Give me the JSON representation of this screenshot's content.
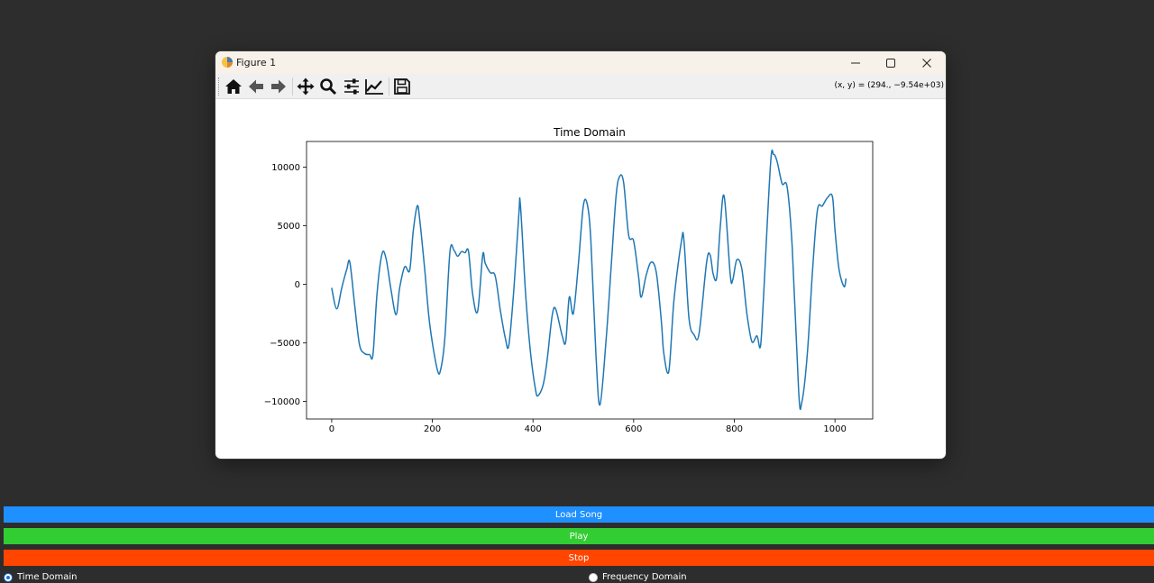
{
  "window": {
    "title": "Figure 1",
    "controls": [
      "minimize",
      "maximize",
      "close"
    ]
  },
  "toolbar": {
    "buttons": [
      {
        "name": "home-icon",
        "label": "Home"
      },
      {
        "name": "back-icon",
        "label": "Back"
      },
      {
        "name": "forward-icon",
        "label": "Forward"
      },
      {
        "name": "pan-icon",
        "label": "Pan"
      },
      {
        "name": "zoom-icon",
        "label": "Zoom"
      },
      {
        "name": "subplots-icon",
        "label": "Configure subplots"
      },
      {
        "name": "edit-axis-icon",
        "label": "Edit axis"
      },
      {
        "name": "save-icon",
        "label": "Save"
      }
    ],
    "coords": "(x, y) = (294., −9.54e+03)"
  },
  "chart_data": {
    "type": "line",
    "title": "Time Domain",
    "xlabel": "",
    "ylabel": "",
    "xlim": [
      -50,
      1075
    ],
    "ylim": [
      -11500,
      12200
    ],
    "xticks": [
      0,
      200,
      400,
      600,
      800,
      1000
    ],
    "yticks": [
      -10000,
      -5000,
      0,
      5000,
      10000
    ],
    "xtick_labels": [
      "0",
      "200",
      "400",
      "600",
      "800",
      "1000"
    ],
    "ytick_labels": [
      "−10000",
      "−5000",
      "0",
      "5000",
      "10000"
    ],
    "grid": false,
    "color": "#1f77b4",
    "series": [
      {
        "x": [
          0,
          10,
          20,
          30,
          36,
          45,
          55,
          65,
          75,
          82,
          90,
          100,
          108,
          118,
          128,
          135,
          145,
          155,
          162,
          170,
          175,
          185,
          195,
          210,
          217,
          225,
          235,
          243,
          250,
          258,
          265,
          272,
          280,
          290,
          300,
          305,
          315,
          325,
          335,
          345,
          352,
          362,
          372,
          375,
          385,
          395,
          405,
          410,
          420,
          428,
          438,
          445,
          458,
          465,
          472,
          480,
          490,
          500,
          508,
          515,
          525,
          533,
          545,
          555,
          565,
          572,
          580,
          590,
          600,
          610,
          615,
          625,
          635,
          645,
          655,
          660,
          670,
          680,
          695,
          700,
          710,
          720,
          730,
          745,
          752,
          758,
          765,
          772,
          780,
          792,
          797,
          805,
          815,
          825,
          835,
          845,
          852,
          858,
          872,
          878,
          885,
          895,
          905,
          915,
          928,
          934,
          945,
          955,
          965,
          975,
          985,
          995,
          1000,
          1008,
          1018,
          1022
        ],
        "y": [
          -300,
          -2100,
          -300,
          1300,
          1900,
          -1500,
          -5100,
          -5900,
          -6000,
          -6000,
          -800,
          2600,
          2200,
          -500,
          -2600,
          -300,
          1500,
          1200,
          4500,
          6700,
          5500,
          1200,
          -3500,
          -7300,
          -7200,
          -4500,
          2800,
          2900,
          2400,
          2800,
          2700,
          2800,
          -800,
          -2300,
          2500,
          1800,
          1000,
          700,
          -2200,
          -4600,
          -5200,
          -400,
          6100,
          6800,
          -600,
          -5800,
          -9000,
          -9500,
          -8600,
          -6500,
          -2700,
          -2100,
          -4400,
          -4900,
          -1100,
          -2500,
          1600,
          6700,
          6800,
          3700,
          -6000,
          -10300,
          -4900,
          1300,
          7500,
          9200,
          8700,
          4200,
          3700,
          600,
          -1100,
          800,
          1900,
          1000,
          -3100,
          -5900,
          -7400,
          -1400,
          3700,
          3700,
          -2900,
          -4300,
          -4200,
          1900,
          2500,
          900,
          600,
          4900,
          7500,
          800,
          400,
          2100,
          1300,
          -2500,
          -4900,
          -4400,
          -5300,
          -1100,
          10300,
          11100,
          10500,
          8600,
          8300,
          3200,
          -9200,
          -10100,
          -6000,
          900,
          6300,
          6700,
          7400,
          7500,
          4700,
          1300,
          -200,
          500
        ]
      }
    ]
  },
  "controls": {
    "load_label": "Load Song",
    "play_label": "Play",
    "stop_label": "Stop",
    "load_color": "#1e90ff",
    "play_color": "#32cd32",
    "stop_color": "#ff4500"
  },
  "view_mode": {
    "options": [
      {
        "label": "Time Domain",
        "selected": true
      },
      {
        "label": "Frequency Domain",
        "selected": false
      }
    ]
  }
}
